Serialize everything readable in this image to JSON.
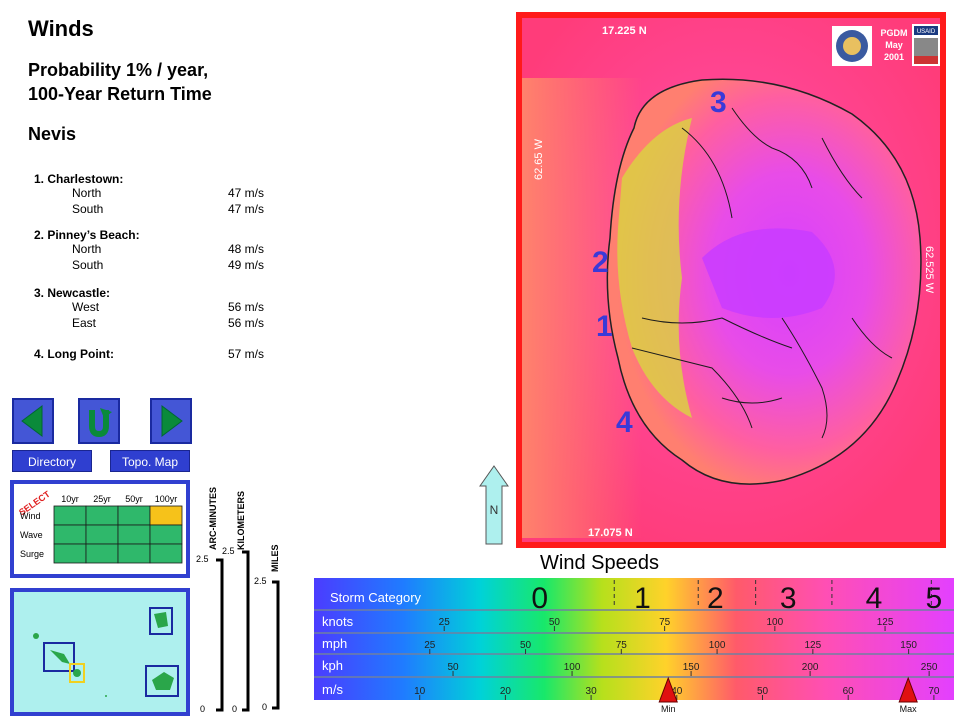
{
  "header": {
    "title": "Winds",
    "subtitle_line1": "Probability 1% / year,",
    "subtitle_line2": "100-Year Return Time",
    "island": "Nevis"
  },
  "locations": [
    {
      "name": "1. Charlestown:",
      "rows": [
        {
          "dir": "North",
          "value": "47 m/s"
        },
        {
          "dir": "South",
          "value": "47 m/s"
        }
      ]
    },
    {
      "name": "2. Pinney’s Beach:",
      "rows": [
        {
          "dir": "North",
          "value": "48 m/s"
        },
        {
          "dir": "South",
          "value": "49 m/s"
        }
      ]
    },
    {
      "name": "3. Newcastle:",
      "rows": [
        {
          "dir": "West",
          "value": "56 m/s"
        },
        {
          "dir": "East",
          "value": "56 m/s"
        }
      ]
    },
    {
      "name": "4. Long Point:",
      "value": "57 m/s",
      "rows": []
    }
  ],
  "nav": {
    "directory_label": "Directory",
    "topo_label": "Topo. Map"
  },
  "selector": {
    "select_label": "SELECT",
    "columns": [
      "10yr",
      "25yr",
      "50yr",
      "100yr"
    ],
    "rows": [
      "Wind",
      "Wave",
      "Surge"
    ],
    "selected": {
      "row": "Wind",
      "column": "100yr"
    },
    "colors": {
      "cell": "#2fb86b",
      "selected": "#f6c21a"
    }
  },
  "scales": {
    "arc_minutes_label": "ARC-MINUTES",
    "kilometers_label": "KILOMETERS",
    "miles_label": "MILES",
    "arc_top": "2.5",
    "arc_bottom": "0",
    "km_top": "2.5",
    "km_bottom": "0",
    "mi_top": "2.5",
    "mi_bottom": "0"
  },
  "north_label": "N",
  "map": {
    "top_lat": "17.225 N",
    "bottom_lat": "17.075 N",
    "left_lon": "62.65 W",
    "right_lon": "62.525 W",
    "credit_org": "PGDM",
    "credit_month": "May",
    "credit_year": "2001",
    "badge": "USAID",
    "markers": [
      "3",
      "2",
      "1",
      "4"
    ]
  },
  "legend": {
    "title": "Wind Speeds",
    "storm_category_label": "Storm Category",
    "categories": [
      "0",
      "1",
      "2",
      "3",
      "4",
      "5"
    ],
    "knots_label": "knots",
    "knots_ticks": [
      "25",
      "50",
      "75",
      "100",
      "125"
    ],
    "mph_label": "mph",
    "mph_ticks": [
      "25",
      "50",
      "75",
      "100",
      "125",
      "150"
    ],
    "kph_label": "kph",
    "kph_ticks": [
      "50",
      "100",
      "150",
      "200",
      "250"
    ],
    "ms_label": "m/s",
    "ms_ticks": [
      "10",
      "20",
      "30",
      "40",
      "50",
      "60",
      "70"
    ],
    "min_label": "Min",
    "max_label": "Max",
    "min_value_ms": 39,
    "max_value_ms": 67
  }
}
